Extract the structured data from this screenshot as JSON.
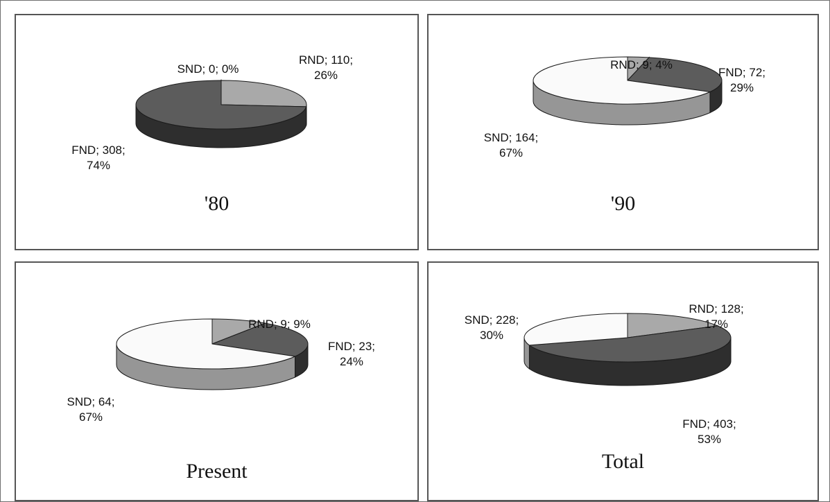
{
  "colors": {
    "RND": "#a9a9a9",
    "FND": "#5c5c5c",
    "SND": "#fafafa"
  },
  "chart_data": [
    {
      "type": "pie",
      "title": "'80",
      "slices": [
        {
          "category": "RND",
          "value": 110,
          "percent": "26%",
          "label_line1": "RND; 110;",
          "label_line2": "26%"
        },
        {
          "category": "FND",
          "value": 308,
          "percent": "74%",
          "label_line1": "FND; 308;",
          "label_line2": "74%"
        },
        {
          "category": "SND",
          "value": 0,
          "percent": "0%",
          "label_line1": "SND; 0; 0%",
          "label_line2": ""
        }
      ]
    },
    {
      "type": "pie",
      "title": "'90",
      "slices": [
        {
          "category": "RND",
          "value": 9,
          "percent": "4%",
          "label_line1": "RND; 9; 4%",
          "label_line2": ""
        },
        {
          "category": "FND",
          "value": 72,
          "percent": "29%",
          "label_line1": "FND; 72;",
          "label_line2": "29%"
        },
        {
          "category": "SND",
          "value": 164,
          "percent": "67%",
          "label_line1": "SND; 164;",
          "label_line2": "67%"
        }
      ]
    },
    {
      "type": "pie",
      "title": "Present",
      "slices": [
        {
          "category": "RND",
          "value": 9,
          "percent": "9%",
          "label_line1": "RND; 9; 9%",
          "label_line2": ""
        },
        {
          "category": "FND",
          "value": 23,
          "percent": "24%",
          "label_line1": "FND; 23;",
          "label_line2": "24%"
        },
        {
          "category": "SND",
          "value": 64,
          "percent": "67%",
          "label_line1": "SND; 64;",
          "label_line2": "67%"
        }
      ]
    },
    {
      "type": "pie",
      "title": "Total",
      "slices": [
        {
          "category": "RND",
          "value": 128,
          "percent": "17%",
          "label_line1": "RND; 128;",
          "label_line2": "17%"
        },
        {
          "category": "FND",
          "value": 403,
          "percent": "53%",
          "label_line1": "FND; 403;",
          "label_line2": "53%"
        },
        {
          "category": "SND",
          "value": 228,
          "percent": "30%",
          "label_line1": "SND; 228;",
          "label_line2": "30%"
        }
      ]
    }
  ]
}
